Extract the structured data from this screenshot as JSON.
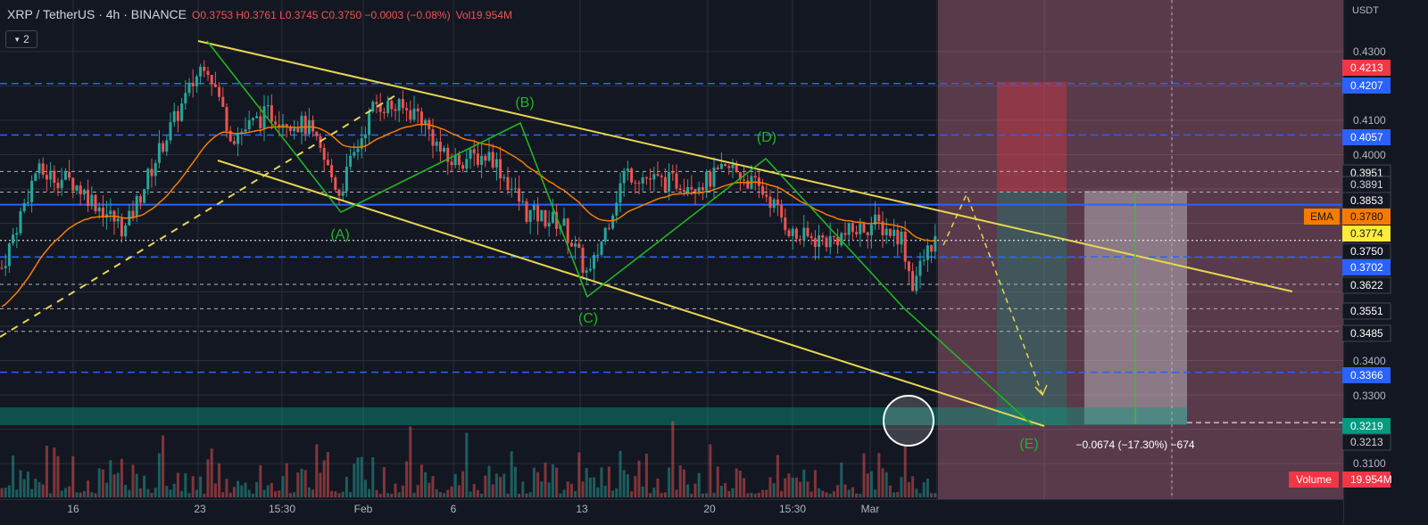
{
  "header": {
    "symbol": "XRP / TetherUS · 4h · BINANCE",
    "ohlc": "O0.3753 H0.3761 L0.3745 C0.3750 −0.0003 (−0.08%)",
    "volume": "Vol19.954M",
    "indicator_count": "2"
  },
  "axis": {
    "currency": "USDT",
    "price_ticks": [
      "0.4300",
      "0.4100",
      "0.4000",
      "0.3400",
      "0.3300",
      "0.3100"
    ],
    "time_ticks": [
      "16",
      "23",
      "15:30",
      "Feb",
      "6",
      "13",
      "20",
      "15:30",
      "Mar"
    ]
  },
  "price_labels": [
    {
      "text": "0.4213",
      "bg": "#f23645",
      "fg": "#ffffff"
    },
    {
      "text": "0.4207",
      "bg": "#2962ff",
      "fg": "#ffffff"
    },
    {
      "text": "0.4057",
      "bg": "#2962ff",
      "fg": "#ffffff"
    },
    {
      "text": "0.3951",
      "bg": "#131722",
      "fg": "#ffffff"
    },
    {
      "text": "0.3891",
      "bg": "#131722",
      "fg": "#d1d4dc"
    },
    {
      "text": "0.3853",
      "bg": "#131722",
      "fg": "#ffffff"
    },
    {
      "text": "0.3780",
      "bg": "#f57c00",
      "fg": "#131722"
    },
    {
      "text": "0.3774",
      "bg": "#ffeb3b",
      "fg": "#131722"
    },
    {
      "text": "0.3750",
      "bg": "#131722",
      "fg": "#ffffff"
    },
    {
      "text": "0.3702",
      "bg": "#2962ff",
      "fg": "#ffffff"
    },
    {
      "text": "0.3622",
      "bg": "#131722",
      "fg": "#ffffff"
    },
    {
      "text": "0.3551",
      "bg": "#131722",
      "fg": "#ffffff"
    },
    {
      "text": "0.3485",
      "bg": "#131722",
      "fg": "#ffffff"
    },
    {
      "text": "0.3366",
      "bg": "#2962ff",
      "fg": "#ffffff"
    },
    {
      "text": "0.3219",
      "bg": "#089981",
      "fg": "#ffffff"
    },
    {
      "text": "0.3213",
      "bg": "#131722",
      "fg": "#d1d4dc"
    },
    {
      "text": "19.954M",
      "bg": "#f23645",
      "fg": "#ffffff"
    }
  ],
  "ema_label": "EMA",
  "volume_label": "Volume",
  "wave_labels": [
    "(A)",
    "(B)",
    "(C)",
    "(D)",
    "(E)"
  ],
  "measure_text": "−0.0674 (−17.30%) −674",
  "colors": {
    "background": "#131722",
    "grid": "#2a2e39",
    "up": "#26a69a",
    "down": "#ef5350",
    "ema": "#f57c00",
    "trendline": "#e6d552",
    "wave": "#22b322",
    "level_blue": "#2962ff"
  }
}
